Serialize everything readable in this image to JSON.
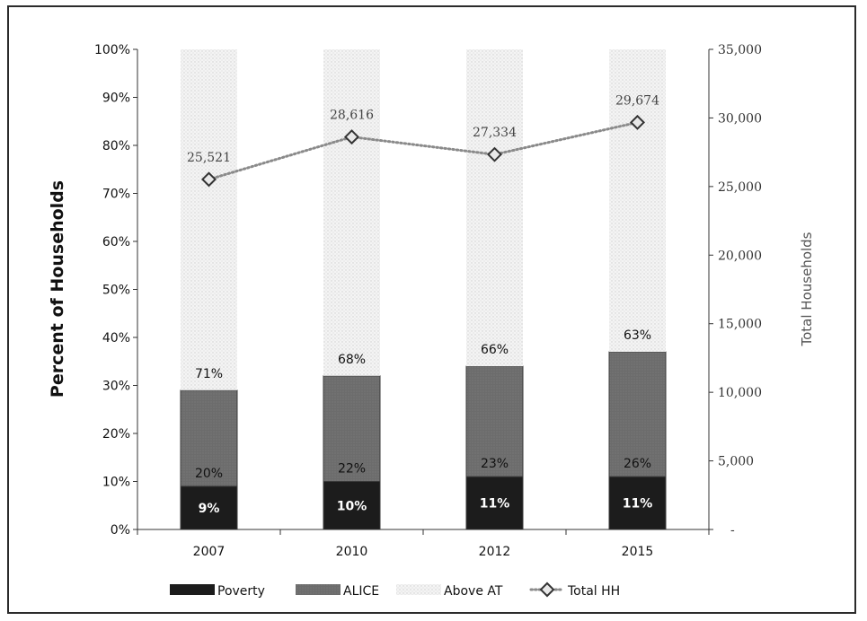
{
  "chart_data": {
    "type": "bar",
    "stacked": true,
    "categories": [
      "2007",
      "2010",
      "2012",
      "2015"
    ],
    "series": [
      {
        "name": "Poverty",
        "values": [
          9,
          10,
          11,
          11
        ],
        "labels": [
          "9%",
          "10%",
          "11%",
          "11%"
        ],
        "color": "#1a1a1a"
      },
      {
        "name": "ALICE",
        "values": [
          20,
          22,
          23,
          26
        ],
        "labels": [
          "20%",
          "22%",
          "23%",
          "26%"
        ],
        "color": "#6e6e6e"
      },
      {
        "name": "Above AT",
        "values": [
          71,
          68,
          66,
          63
        ],
        "labels": [
          "71%",
          "68%",
          "66%",
          "63%"
        ],
        "color": "#f1f1f1"
      }
    ],
    "line_series": {
      "name": "Total HH",
      "axis": "right",
      "values": [
        25521,
        28616,
        27334,
        29674
      ],
      "labels": [
        "25,521",
        "28,616",
        "27,334",
        "29,674"
      ],
      "color": "#777777"
    },
    "ylabel": "Percent of Households",
    "ylabel_right": "Total Households",
    "ylim": [
      0,
      100
    ],
    "yticks": [
      "0%",
      "10%",
      "20%",
      "30%",
      "40%",
      "50%",
      "60%",
      "70%",
      "80%",
      "90%",
      "100%"
    ],
    "ylim_right": [
      0,
      35000
    ],
    "yticks_right": [
      "-",
      "5,000",
      "10,000",
      "15,000",
      "20,000",
      "25,000",
      "30,000",
      "35,000"
    ],
    "legend_position": "bottom",
    "grid": false
  }
}
